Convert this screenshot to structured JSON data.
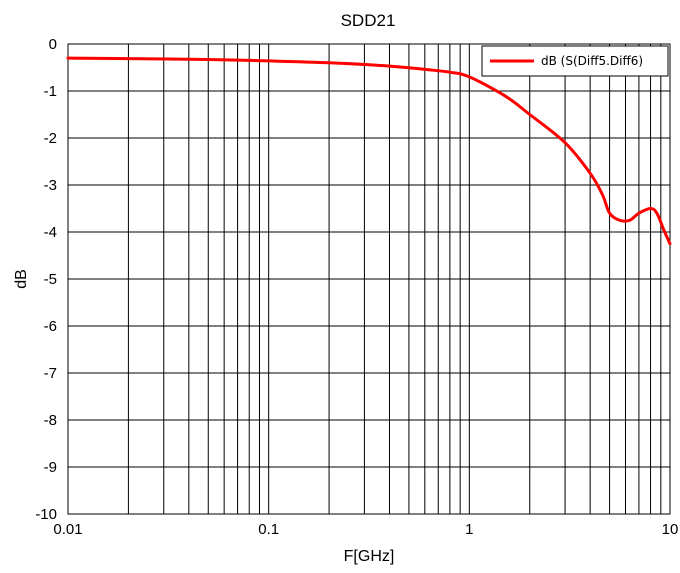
{
  "chart_data": {
    "type": "line",
    "title": "SDD21",
    "xlabel": "F[GHz]",
    "ylabel": "dB",
    "xscale": "log",
    "xlim": [
      0.01,
      10
    ],
    "ylim": [
      -10,
      0
    ],
    "grid": true,
    "legend_position": "top-right",
    "x_tick_labels": [
      "0.01",
      "0.1",
      "1",
      "10"
    ],
    "y_tick_labels": [
      "0",
      "-1",
      "-2",
      "-3",
      "-4",
      "-5",
      "-6",
      "-7",
      "-8",
      "-9",
      "-10"
    ],
    "series": [
      {
        "name": "dB (S(Diff5.Diff6)",
        "color": "#ff0000",
        "x": [
          0.01,
          0.02,
          0.05,
          0.1,
          0.2,
          0.4,
          0.6,
          0.8,
          1.0,
          1.5,
          2.0,
          3.0,
          4.0,
          4.6,
          5.0,
          5.6,
          6.3,
          7.0,
          8.0,
          8.6,
          9.3,
          10.0
        ],
        "y": [
          -0.3,
          -0.31,
          -0.33,
          -0.36,
          -0.4,
          -0.47,
          -0.54,
          -0.6,
          -0.7,
          -1.1,
          -1.5,
          -2.1,
          -2.75,
          -3.2,
          -3.6,
          -3.75,
          -3.75,
          -3.6,
          -3.5,
          -3.6,
          -3.95,
          -4.25
        ]
      }
    ]
  }
}
